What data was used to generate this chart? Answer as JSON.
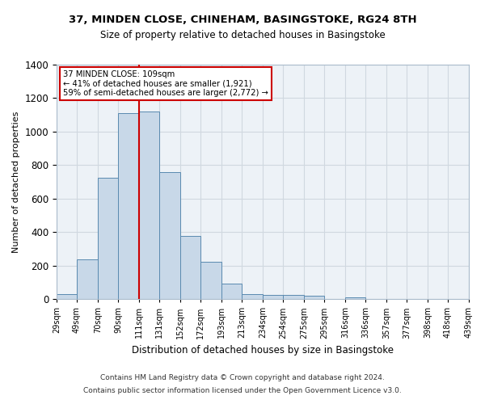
{
  "title": "37, MINDEN CLOSE, CHINEHAM, BASINGSTOKE, RG24 8TH",
  "subtitle": "Size of property relative to detached houses in Basingstoke",
  "xlabel": "Distribution of detached houses by size in Basingstoke",
  "ylabel": "Number of detached properties",
  "footer_line1": "Contains HM Land Registry data © Crown copyright and database right 2024.",
  "footer_line2": "Contains public sector information licensed under the Open Government Licence v3.0.",
  "bin_labels": [
    "29sqm",
    "49sqm",
    "70sqm",
    "90sqm",
    "111sqm",
    "131sqm",
    "152sqm",
    "172sqm",
    "193sqm",
    "213sqm",
    "234sqm",
    "254sqm",
    "275sqm",
    "295sqm",
    "316sqm",
    "336sqm",
    "357sqm",
    "377sqm",
    "398sqm",
    "418sqm",
    "439sqm"
  ],
  "bar_values": [
    30,
    235,
    725,
    1110,
    1120,
    760,
    375,
    225,
    90,
    30,
    25,
    25,
    18,
    0,
    12,
    0,
    0,
    0,
    0,
    0
  ],
  "bar_color": "#c8d8e8",
  "bar_edge_color": "#5a8ab0",
  "property_label": "37 MINDEN CLOSE: 109sqm",
  "annotation_line1": "← 41% of detached houses are smaller (1,921)",
  "annotation_line2": "59% of semi-detached houses are larger (2,772) →",
  "vline_color": "#cc0000",
  "vline_x": 111,
  "bin_edges": [
    29,
    49,
    70,
    90,
    111,
    131,
    152,
    172,
    193,
    213,
    234,
    254,
    275,
    295,
    316,
    336,
    357,
    377,
    398,
    418,
    439
  ],
  "ylim": [
    0,
    1400
  ],
  "annotation_box_color": "#cc0000",
  "grid_color": "#d0d8e0",
  "bg_color": "#edf2f7"
}
